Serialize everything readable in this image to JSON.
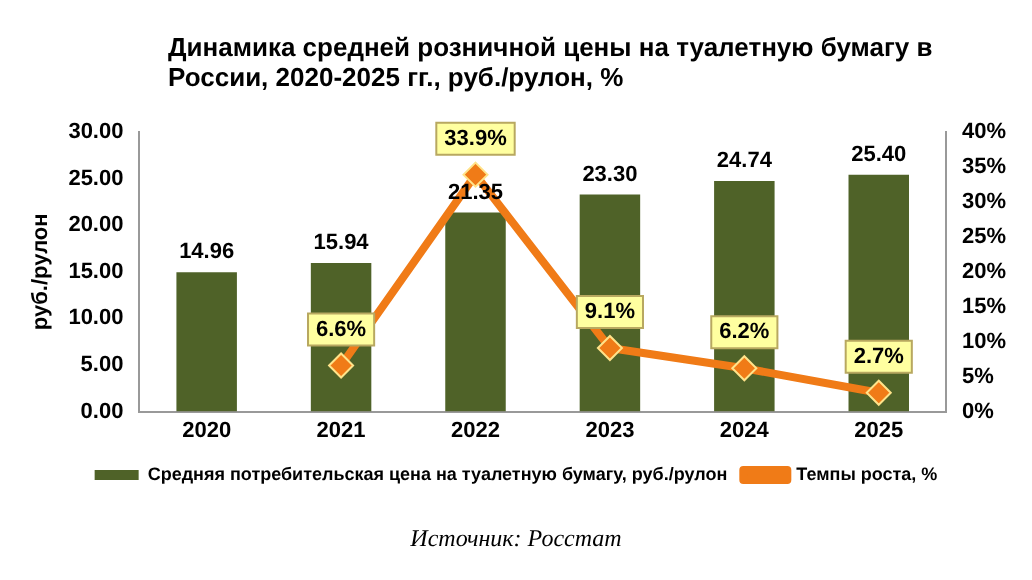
{
  "chart_data": {
    "type": "bar",
    "title": "Динамика средней розничной цены на туалетную бумагу в России, 2020-2025 гг., руб./рулон, %",
    "ylabel": "руб./рулон",
    "categories": [
      "2020",
      "2021",
      "2022",
      "2023",
      "2024",
      "2025"
    ],
    "series": [
      {
        "name": "Средняя потребительская цена на туалетную бумагу, руб./рулон",
        "color": "#4f6228",
        "values": [
          14.96,
          15.94,
          21.35,
          23.3,
          24.74,
          25.4
        ],
        "value_labels": [
          "14.96",
          "15.94",
          "21.35",
          "23.30",
          "24.74",
          "25.40"
        ]
      },
      {
        "name": "Темпы роста, %",
        "type": "line",
        "axis": "y2",
        "color": "#f07b17",
        "marker": "diamond",
        "values": [
          null,
          6.6,
          33.9,
          9.1,
          6.2,
          2.7
        ],
        "value_labels": [
          null,
          "6.6%",
          "33.9%",
          "9.1%",
          "6.2%",
          "2.7%"
        ]
      }
    ],
    "ylim": [
      0,
      30
    ],
    "yticks": [
      {
        "value": 0,
        "label": "0.00"
      },
      {
        "value": 5,
        "label": "5.00"
      },
      {
        "value": 10,
        "label": "10.00"
      },
      {
        "value": 15,
        "label": "15.00"
      },
      {
        "value": 20,
        "label": "20.00"
      },
      {
        "value": 25,
        "label": "25.00"
      },
      {
        "value": 30,
        "label": "30.00"
      }
    ],
    "y2lim": [
      0,
      40
    ],
    "y2ticks": [
      {
        "value": 0,
        "label": "0%"
      },
      {
        "value": 5,
        "label": "5%"
      },
      {
        "value": 10,
        "label": "10%"
      },
      {
        "value": 15,
        "label": "15%"
      },
      {
        "value": 20,
        "label": "20%"
      },
      {
        "value": 25,
        "label": "25%"
      },
      {
        "value": 30,
        "label": "30%"
      },
      {
        "value": 35,
        "label": "35%"
      },
      {
        "value": 40,
        "label": "40%"
      }
    ],
    "grid": false,
    "legend": "bottom",
    "annotations": [
      "Источник: Росстат"
    ]
  }
}
